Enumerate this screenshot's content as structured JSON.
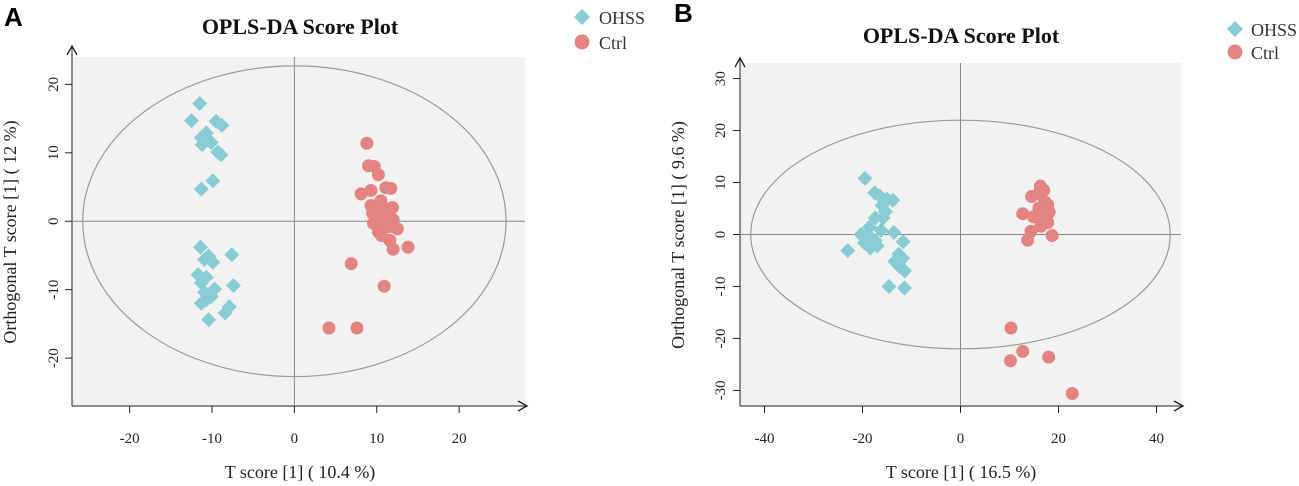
{
  "chart_data": [
    {
      "panel": "A",
      "type": "scatter",
      "title": "OPLS-DA Score Plot",
      "xlabel": "T score [1] ( 10.4 %)",
      "ylabel": "Orthogonal T score [1] ( 12 %)",
      "xlim": [
        -27,
        28
      ],
      "ylim": [
        -27,
        24
      ],
      "xticks": [
        -20,
        -10,
        0,
        10,
        20
      ],
      "yticks": [
        -20,
        -10,
        0,
        10,
        20
      ],
      "ellipse": {
        "rx": 25.7,
        "ry": 22.7
      },
      "legend": {
        "position": "top-right",
        "entries": [
          "OHSS",
          "Ctrl"
        ]
      },
      "series": [
        {
          "name": "OHSS",
          "marker": "diamond",
          "color": "#86ccd2",
          "points": [
            [
              -11.5,
              17.2
            ],
            [
              -12.5,
              14.7
            ],
            [
              -9.5,
              14.6
            ],
            [
              -8.8,
              14
            ],
            [
              -10.7,
              12.9
            ],
            [
              -11.3,
              12.2
            ],
            [
              -10.1,
              11.5
            ],
            [
              -11.2,
              11.2
            ],
            [
              -9.3,
              10.1
            ],
            [
              -8.9,
              9.7
            ],
            [
              -9.9,
              5.9
            ],
            [
              -11.3,
              4.7
            ],
            [
              -11.4,
              -3.8
            ],
            [
              -7.6,
              -4.9
            ],
            [
              -10.4,
              -5.1
            ],
            [
              -10.9,
              -5.6
            ],
            [
              -9.9,
              -6
            ],
            [
              -11.7,
              -7.8
            ],
            [
              -10.7,
              -8.2
            ],
            [
              -11.3,
              -9
            ],
            [
              -7.4,
              -9.4
            ],
            [
              -9.7,
              -9.9
            ],
            [
              -10.9,
              -10.4
            ],
            [
              -11.3,
              -12
            ],
            [
              -10.7,
              -11.5
            ],
            [
              -10.1,
              -11
            ],
            [
              -7.9,
              -12.5
            ],
            [
              -8.4,
              -13.4
            ],
            [
              -10.4,
              -14.4
            ]
          ]
        },
        {
          "name": "Ctrl",
          "marker": "circle",
          "color": "#e38482",
          "points": [
            [
              8.8,
              11.4
            ],
            [
              9,
              8.1
            ],
            [
              9.7,
              8
            ],
            [
              10.2,
              6.8
            ],
            [
              11.1,
              4.9
            ],
            [
              11.7,
              4.8
            ],
            [
              8.1,
              4
            ],
            [
              9.3,
              4.5
            ],
            [
              10.5,
              3
            ],
            [
              9.3,
              2.3
            ],
            [
              10,
              1.9
            ],
            [
              11.4,
              1.8
            ],
            [
              11.9,
              2
            ],
            [
              9.5,
              1.2
            ],
            [
              10.3,
              0.8
            ],
            [
              11.1,
              0.4
            ],
            [
              12,
              0.2
            ],
            [
              9.6,
              -0.3
            ],
            [
              10.6,
              -0.6
            ],
            [
              11.5,
              -0.8
            ],
            [
              12.5,
              -1.1
            ],
            [
              10.2,
              -1.5
            ],
            [
              10.6,
              -2.1
            ],
            [
              11.6,
              -2.8
            ],
            [
              13.8,
              -3.8
            ],
            [
              12,
              -4.1
            ],
            [
              6.9,
              -6.2
            ],
            [
              10.9,
              -9.5
            ],
            [
              4.2,
              -15.6
            ],
            [
              7.6,
              -15.6
            ]
          ]
        }
      ]
    },
    {
      "panel": "B",
      "type": "scatter",
      "title": "OPLS-DA Score Plot",
      "xlabel": "T score [1] ( 16.5 %)",
      "ylabel": "Orthogonal T score [1] ( 9.6 %)",
      "xlim": [
        -45,
        45
      ],
      "ylim": [
        -33,
        33
      ],
      "xticks": [
        -40,
        -20,
        0,
        20,
        40
      ],
      "yticks": [
        -30,
        -20,
        -10,
        0,
        10,
        20,
        30
      ],
      "ellipse": {
        "rx": 42.8,
        "ry": 22
      },
      "legend": {
        "position": "top-right",
        "entries": [
          "OHSS",
          "Ctrl"
        ]
      },
      "series": [
        {
          "name": "OHSS",
          "marker": "diamond",
          "color": "#86ccd2",
          "points": [
            [
              -19.5,
              10.8
            ],
            [
              -17.5,
              8
            ],
            [
              -16.5,
              7.4
            ],
            [
              -15,
              6.8
            ],
            [
              -13.8,
              6.6
            ],
            [
              -16,
              5.6
            ],
            [
              -15.3,
              4.4
            ],
            [
              -17.4,
              3.2
            ],
            [
              -15.8,
              3.2
            ],
            [
              -18.6,
              1.4
            ],
            [
              -16.2,
              0.8
            ],
            [
              -13.6,
              0.4
            ],
            [
              -20.3,
              0
            ],
            [
              -19.1,
              -0.4
            ],
            [
              -18.1,
              -0.8
            ],
            [
              -17.4,
              -1.2
            ],
            [
              -19.6,
              -1.6
            ],
            [
              -11.7,
              -1.4
            ],
            [
              -17,
              -2.2
            ],
            [
              -18.4,
              -2.6
            ],
            [
              -23,
              -3.1
            ],
            [
              -12.6,
              -3.8
            ],
            [
              -11.8,
              -4.6
            ],
            [
              -13.4,
              -5.2
            ],
            [
              -12.4,
              -6.2
            ],
            [
              -11.4,
              -7
            ],
            [
              -14.6,
              -10
            ],
            [
              -11.4,
              -10.3
            ]
          ]
        },
        {
          "name": "Ctrl",
          "marker": "circle",
          "color": "#e38482",
          "points": [
            [
              16.3,
              9.3
            ],
            [
              17,
              8.5
            ],
            [
              15.9,
              7.8
            ],
            [
              14.5,
              7.3
            ],
            [
              17.3,
              6.2
            ],
            [
              17.8,
              5.7
            ],
            [
              16,
              5.1
            ],
            [
              17.2,
              4.6
            ],
            [
              18.1,
              4.3
            ],
            [
              12.7,
              4
            ],
            [
              16.1,
              3.8
            ],
            [
              14.9,
              3.4
            ],
            [
              17,
              3.1
            ],
            [
              16.4,
              2.7
            ],
            [
              17.8,
              2.3
            ],
            [
              16.4,
              1.6
            ],
            [
              14.4,
              0.6
            ],
            [
              18.7,
              -0.2
            ],
            [
              13.7,
              -1.1
            ],
            [
              10.3,
              -18
            ],
            [
              12.7,
              -22.5
            ],
            [
              18,
              -23.6
            ],
            [
              10.2,
              -24.3
            ],
            [
              22.8,
              -30.6
            ]
          ]
        }
      ]
    }
  ]
}
